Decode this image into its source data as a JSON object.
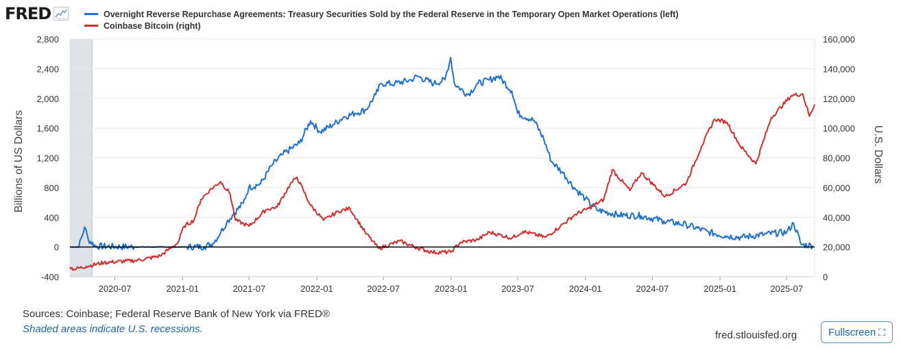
{
  "header": {
    "logo_text": "FRED",
    "logo_icon": "chart-line-icon"
  },
  "chart_data": {
    "type": "line",
    "x_tick_labels": [
      "2020-07",
      "2021-01",
      "2021-07",
      "2022-01",
      "2022-07",
      "2023-01",
      "2023-07",
      "2024-01",
      "2024-07",
      "2025-01",
      "2025-07"
    ],
    "x_range": [
      "2020-03-01",
      "2025-09-15"
    ],
    "y_left": {
      "label": "Billions of US Dollars",
      "ylim": [
        -400,
        2800
      ],
      "ticks": [
        "-400",
        "0",
        "400",
        "800",
        "1,200",
        "1,600",
        "2,000",
        "2,400",
        "2,800"
      ]
    },
    "y_right": {
      "label": "U.S. Dollars",
      "ylim": [
        0,
        160000
      ],
      "ticks": [
        "0",
        "20,000",
        "40,000",
        "60,000",
        "80,000",
        "100,000",
        "120,000",
        "140,000",
        "160,000"
      ]
    },
    "recession": {
      "start": "2020-03-01",
      "end": "2020-04-30"
    },
    "grid": "horizontal",
    "series": [
      {
        "name": "Overnight Reverse Repurchase Agreements: Treasury Securities Sold by the Federal Reserve in the Temporary Open Market Operations (left)",
        "axis": "left",
        "color": "#1c6fd6",
        "points": [
          [
            "2020-03-01",
            0
          ],
          [
            "2020-03-25",
            0
          ],
          [
            "2020-04-10",
            270
          ],
          [
            "2020-04-20",
            100
          ],
          [
            "2020-05-10",
            10
          ],
          [
            "2020-09-01",
            0
          ],
          [
            "2021-01-01",
            0
          ],
          [
            "2021-03-01",
            5
          ],
          [
            "2021-03-25",
            50
          ],
          [
            "2021-04-15",
            200
          ],
          [
            "2021-05-01",
            330
          ],
          [
            "2021-05-20",
            450
          ],
          [
            "2021-06-15",
            590
          ],
          [
            "2021-06-30",
            800
          ],
          [
            "2021-08-01",
            850
          ],
          [
            "2021-09-01",
            1100
          ],
          [
            "2021-10-01",
            1250
          ],
          [
            "2021-11-15",
            1400
          ],
          [
            "2021-12-15",
            1700
          ],
          [
            "2022-01-10",
            1550
          ],
          [
            "2022-02-15",
            1650
          ],
          [
            "2022-03-15",
            1750
          ],
          [
            "2022-04-15",
            1800
          ],
          [
            "2022-05-15",
            1850
          ],
          [
            "2022-06-10",
            2050
          ],
          [
            "2022-06-25",
            2200
          ],
          [
            "2022-08-01",
            2200
          ],
          [
            "2022-09-15",
            2250
          ],
          [
            "2022-10-01",
            2300
          ],
          [
            "2022-11-15",
            2200
          ],
          [
            "2022-12-15",
            2250
          ],
          [
            "2022-12-31",
            2550
          ],
          [
            "2023-01-10",
            2200
          ],
          [
            "2023-02-15",
            2050
          ],
          [
            "2023-03-15",
            2200
          ],
          [
            "2023-04-15",
            2250
          ],
          [
            "2023-05-10",
            2300
          ],
          [
            "2023-06-15",
            2100
          ],
          [
            "2023-07-01",
            1800
          ],
          [
            "2023-08-15",
            1700
          ],
          [
            "2023-09-10",
            1450
          ],
          [
            "2023-10-01",
            1150
          ],
          [
            "2023-11-01",
            1000
          ],
          [
            "2023-12-01",
            800
          ],
          [
            "2024-01-01",
            650
          ],
          [
            "2024-02-01",
            500
          ],
          [
            "2024-04-01",
            430
          ],
          [
            "2024-06-01",
            420
          ],
          [
            "2024-08-01",
            350
          ],
          [
            "2024-10-01",
            300
          ],
          [
            "2024-12-01",
            200
          ],
          [
            "2025-01-15",
            150
          ],
          [
            "2025-03-01",
            130
          ],
          [
            "2025-05-01",
            170
          ],
          [
            "2025-07-01",
            200
          ],
          [
            "2025-07-20",
            320
          ],
          [
            "2025-08-10",
            30
          ],
          [
            "2025-09-10",
            20
          ]
        ]
      },
      {
        "name": "Coinbase Bitcoin (right)",
        "axis": "right",
        "color": "#d62b2b",
        "points": [
          [
            "2020-03-01",
            6500
          ],
          [
            "2020-03-12",
            5000
          ],
          [
            "2020-04-15",
            7000
          ],
          [
            "2020-06-01",
            9500
          ],
          [
            "2020-09-01",
            11000
          ],
          [
            "2020-11-01",
            14000
          ],
          [
            "2020-12-20",
            23000
          ],
          [
            "2021-01-05",
            34000
          ],
          [
            "2021-02-01",
            38000
          ],
          [
            "2021-02-20",
            52000
          ],
          [
            "2021-03-15",
            58000
          ],
          [
            "2021-04-14",
            64000
          ],
          [
            "2021-05-10",
            56000
          ],
          [
            "2021-05-25",
            38000
          ],
          [
            "2021-07-01",
            34000
          ],
          [
            "2021-08-15",
            45000
          ],
          [
            "2021-09-15",
            47000
          ],
          [
            "2021-10-20",
            62000
          ],
          [
            "2021-11-08",
            67000
          ],
          [
            "2021-12-15",
            48000
          ],
          [
            "2022-01-20",
            38000
          ],
          [
            "2022-03-01",
            44000
          ],
          [
            "2022-04-01",
            46000
          ],
          [
            "2022-05-12",
            30000
          ],
          [
            "2022-06-18",
            19000
          ],
          [
            "2022-08-15",
            24000
          ],
          [
            "2022-09-30",
            19500
          ],
          [
            "2022-11-10",
            16500
          ],
          [
            "2022-12-31",
            16500
          ],
          [
            "2023-01-25",
            23000
          ],
          [
            "2023-03-15",
            25000
          ],
          [
            "2023-04-15",
            30000
          ],
          [
            "2023-06-15",
            26000
          ],
          [
            "2023-07-15",
            30500
          ],
          [
            "2023-09-15",
            26500
          ],
          [
            "2023-10-25",
            34000
          ],
          [
            "2023-12-05",
            42000
          ],
          [
            "2024-01-10",
            46000
          ],
          [
            "2024-02-20",
            52000
          ],
          [
            "2024-03-14",
            72000
          ],
          [
            "2024-05-01",
            58000
          ],
          [
            "2024-06-01",
            70000
          ],
          [
            "2024-08-05",
            54000
          ],
          [
            "2024-10-01",
            63000
          ],
          [
            "2024-11-12",
            88000
          ],
          [
            "2024-12-17",
            106000
          ],
          [
            "2025-01-20",
            104000
          ],
          [
            "2025-02-25",
            88000
          ],
          [
            "2025-04-08",
            76000
          ],
          [
            "2025-05-20",
            107000
          ],
          [
            "2025-07-14",
            122000
          ],
          [
            "2025-08-14",
            123000
          ],
          [
            "2025-09-01",
            108000
          ],
          [
            "2025-09-15",
            116000
          ]
        ]
      }
    ]
  },
  "footer": {
    "sources": "Sources: Coinbase; Federal Reserve Bank of New York via FRED®",
    "note": "Shaded areas indicate U.S. recessions.",
    "site": "fred.stlouisfed.org",
    "fullscreen_label": "Fullscreen",
    "fullscreen_icon": "expand-icon"
  }
}
